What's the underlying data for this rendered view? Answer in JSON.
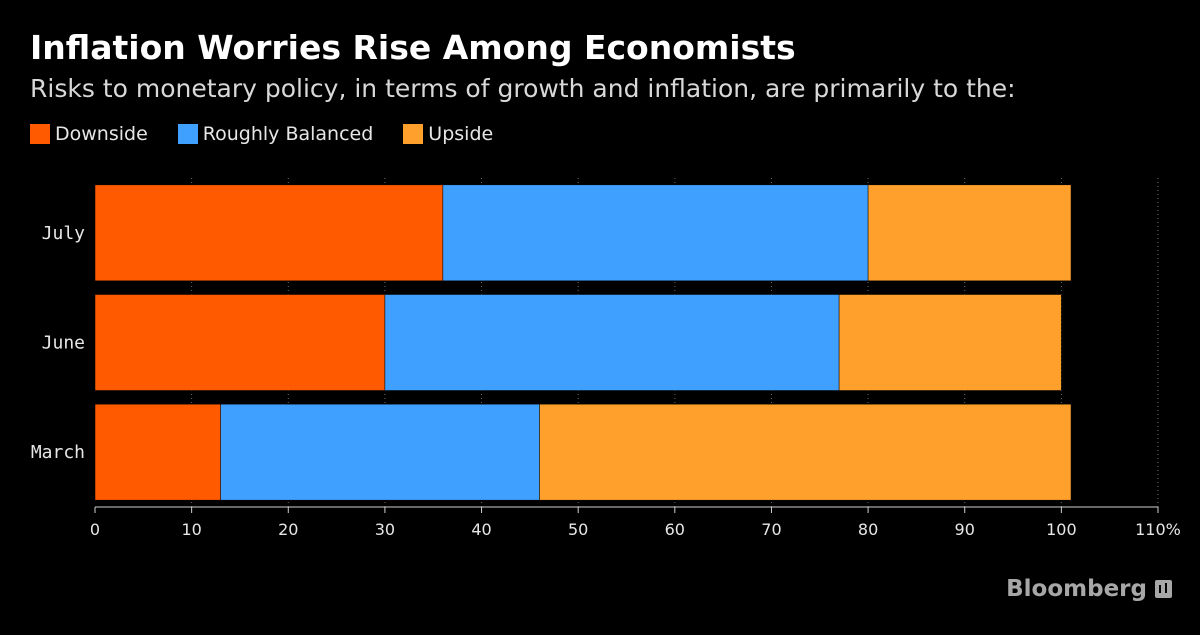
{
  "chart_data": {
    "type": "bar",
    "orientation": "horizontal",
    "stacked": true,
    "title": "Inflation Worries Rise Among Economists",
    "subtitle": "Risks to monetary policy, in terms of growth and inflation, are primarily to the:",
    "categories": [
      "July",
      "June",
      "March"
    ],
    "series": [
      {
        "name": "Downside",
        "color": "#ff5a00",
        "values": [
          36,
          30,
          13
        ]
      },
      {
        "name": "Roughly Balanced",
        "color": "#40a0ff",
        "values": [
          44,
          47,
          33
        ]
      },
      {
        "name": "Upside",
        "color": "#ffa02d",
        "values": [
          21,
          23,
          55
        ]
      }
    ],
    "xlim": [
      0,
      110
    ],
    "xticks": [
      "0",
      "10",
      "20",
      "30",
      "40",
      "50",
      "60",
      "70",
      "80",
      "90",
      "100",
      "110%"
    ],
    "legend": "top-left",
    "grid": true
  },
  "brand": {
    "name": "Bloomberg",
    "icon": "bloomberg-terminal-icon"
  }
}
